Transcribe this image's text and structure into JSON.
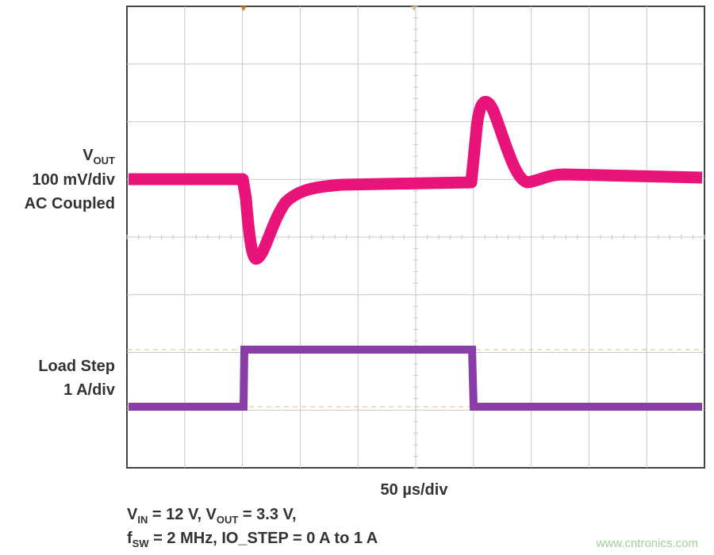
{
  "labels": {
    "vout": {
      "main": "V",
      "sub": "OUT"
    },
    "vout_scale": "100 mV/div",
    "vout_coupling": "AC Coupled",
    "load_step": "Load Step",
    "load_scale": "1 A/div",
    "time_scale": "50 µs/div"
  },
  "caption": {
    "line1": [
      "V",
      "IN",
      " = 12 V, V",
      "OUT",
      " = 3.3 V,"
    ],
    "line2": [
      "f",
      "SW",
      " = 2 MHz, IO_STEP = 0 A to 1 A"
    ]
  },
  "watermark": "www.cntronics.com"
}
